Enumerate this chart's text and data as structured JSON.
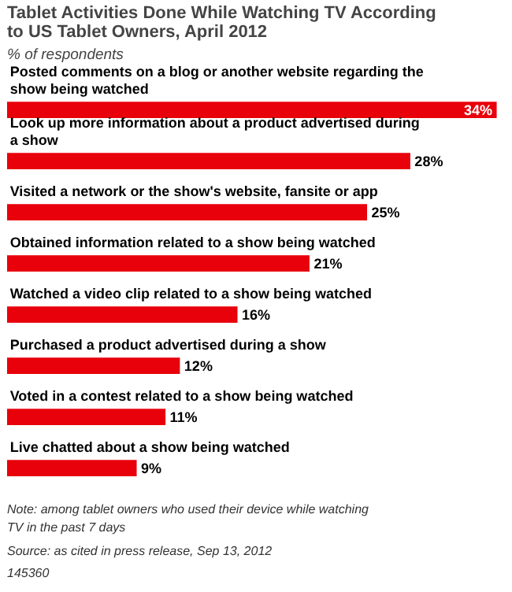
{
  "chart_data": {
    "type": "bar",
    "orientation": "horizontal",
    "title": "Tablet Activities Done While Watching TV According to US Tablet Owners, April 2012",
    "subtitle": "% of respondents",
    "categories": [
      "Posted comments on a blog or another website regarding the show being watched",
      "Look up more information about a product advertised during a show",
      "Visited a network or the show's website, fansite or app",
      "Obtained information related to a show being watched",
      "Watched a video clip related to a show being watched",
      "Purchased a product advertised during a show",
      "Voted in a contest related to a show being watched",
      "Live chatted about a show being watched"
    ],
    "values": [
      34,
      28,
      25,
      21,
      16,
      12,
      11,
      9
    ],
    "color": "#e8000b",
    "value_labels": [
      "34%",
      "28%",
      "25%",
      "21%",
      "16%",
      "12%",
      "11%",
      "9%"
    ],
    "tick_labels": false,
    "annotations": [
      "Note: among tablet owners who used their device while watching TV in the past 7 days",
      "Source: as cited in press release, Sep 13, 2012",
      "145360"
    ]
  }
}
